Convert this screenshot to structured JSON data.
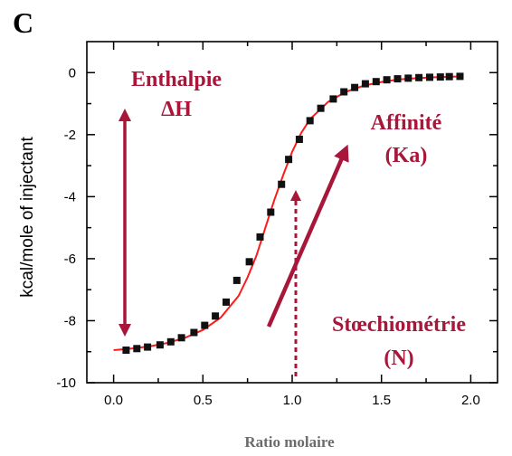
{
  "panel_label": "C",
  "colors": {
    "annotation": "#a8163a",
    "fit_line": "#ff1a1a",
    "markers": "#111111",
    "axes": "#000000",
    "xlabel": "#6b6b6b"
  },
  "chart_data": {
    "type": "scatter",
    "title": "",
    "xlabel": "Ratio molaire",
    "ylabel": "kcal/mole of injectant",
    "xlim": [
      -0.15,
      2.15
    ],
    "ylim": [
      -10,
      1
    ],
    "x_ticks": [
      "0.0",
      "0.5",
      "1.0",
      "1.5",
      "2.0"
    ],
    "y_ticks": [
      "0",
      "-2",
      "-4",
      "-6",
      "-8",
      "-10"
    ],
    "grid": false,
    "series": [
      {
        "kind": "markers",
        "x": [
          0.07,
          0.13,
          0.19,
          0.26,
          0.32,
          0.38,
          0.45,
          0.51,
          0.57,
          0.63,
          0.69,
          0.76,
          0.82,
          0.88,
          0.94,
          0.98,
          1.04,
          1.1,
          1.16,
          1.23,
          1.29,
          1.35,
          1.41,
          1.47,
          1.53,
          1.59,
          1.65,
          1.71,
          1.77,
          1.83,
          1.88,
          1.94
        ],
        "y": [
          -8.95,
          -8.9,
          -8.85,
          -8.78,
          -8.68,
          -8.55,
          -8.38,
          -8.15,
          -7.85,
          -7.4,
          -6.7,
          -6.1,
          -5.3,
          -4.5,
          -3.6,
          -2.8,
          -2.15,
          -1.55,
          -1.15,
          -0.85,
          -0.62,
          -0.48,
          -0.36,
          -0.29,
          -0.23,
          -0.2,
          -0.18,
          -0.16,
          -0.15,
          -0.14,
          -0.13,
          -0.12
        ]
      },
      {
        "kind": "fit-line",
        "x": [
          0.0,
          0.1,
          0.2,
          0.3,
          0.4,
          0.5,
          0.6,
          0.7,
          0.75,
          0.8,
          0.85,
          0.9,
          0.95,
          1.0,
          1.05,
          1.1,
          1.2,
          1.3,
          1.4,
          1.5,
          1.6,
          1.7,
          1.8,
          1.9,
          1.95
        ],
        "y": [
          -8.95,
          -8.9,
          -8.83,
          -8.72,
          -8.55,
          -8.3,
          -7.9,
          -7.2,
          -6.6,
          -5.9,
          -5.0,
          -4.1,
          -3.3,
          -2.55,
          -1.95,
          -1.5,
          -0.95,
          -0.62,
          -0.42,
          -0.3,
          -0.22,
          -0.18,
          -0.15,
          -0.13,
          -0.12
        ]
      }
    ]
  },
  "annotations": {
    "enthalpie": [
      "Enthalpie",
      "ΔH"
    ],
    "affinite": [
      "Affinité",
      "(Ka)"
    ],
    "stoechiometrie": [
      "Stœchiométrie",
      "(N)"
    ]
  }
}
